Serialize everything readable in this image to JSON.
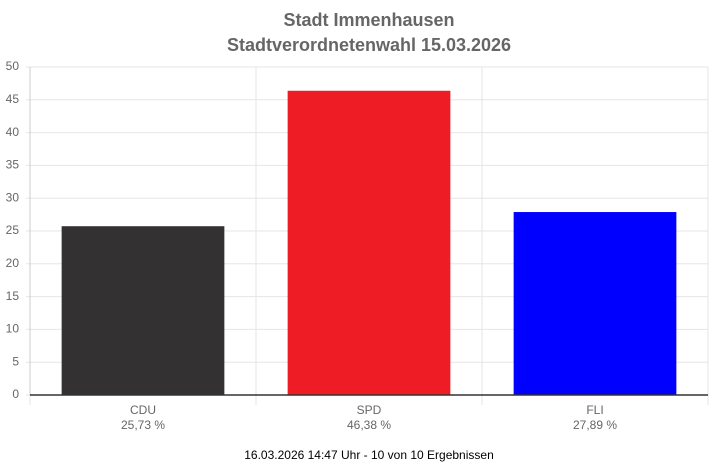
{
  "chart_data": {
    "type": "bar",
    "title": "Stadt Immenhausen",
    "subtitle": "Stadtverordnetenwahl 15.03.2026",
    "categories": [
      "CDU",
      "SPD",
      "FLI"
    ],
    "values": [
      25.73,
      46.38,
      27.89
    ],
    "value_labels": [
      "25,73 %",
      "46,38 %",
      "27,89 %"
    ],
    "colors": [
      "#333132",
      "#ee1c25",
      "#0000ff"
    ],
    "ylim": [
      0,
      50
    ],
    "yticks": [
      0,
      5,
      10,
      15,
      20,
      25,
      30,
      35,
      40,
      45,
      50
    ],
    "grid": true,
    "footnote": "16.03.2026 14:47 Uhr - 10 von 10 Ergebnissen"
  }
}
